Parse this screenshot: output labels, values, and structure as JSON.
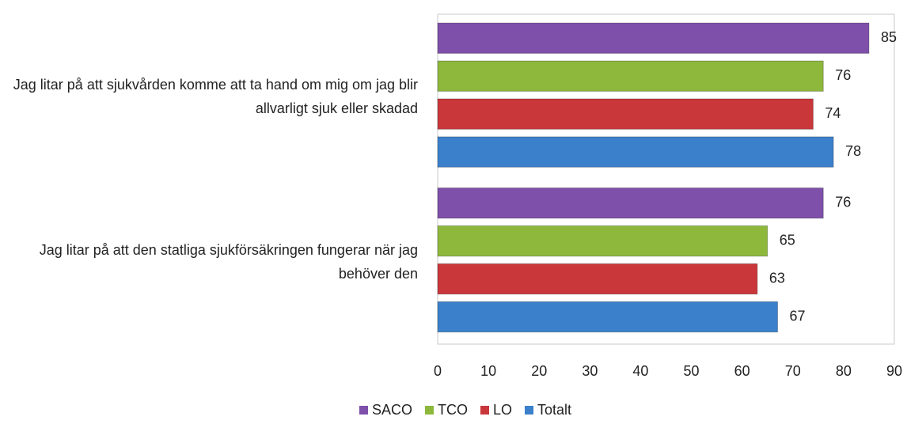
{
  "chart_data": {
    "type": "barh",
    "categories": [
      "Jag litar på att sjukvården komme att ta hand om mig om jag blir allvarligt sjuk eller skadad",
      "Jag litar på att den statliga sjukförsäkringen fungerar när jag behöver den"
    ],
    "series": [
      {
        "name": "SACO",
        "color": "#7e50aa",
        "values": [
          85,
          76
        ]
      },
      {
        "name": "TCO",
        "color": "#8db83c",
        "values": [
          76,
          65
        ]
      },
      {
        "name": "LO",
        "color": "#c9373a",
        "values": [
          74,
          63
        ]
      },
      {
        "name": "Totalt",
        "color": "#3b80cb",
        "values": [
          78,
          67
        ]
      }
    ],
    "xlim": [
      0,
      90
    ],
    "xticks": [
      0,
      10,
      20,
      30,
      40,
      50,
      60,
      70,
      80,
      90
    ],
    "legend": "bottom"
  }
}
